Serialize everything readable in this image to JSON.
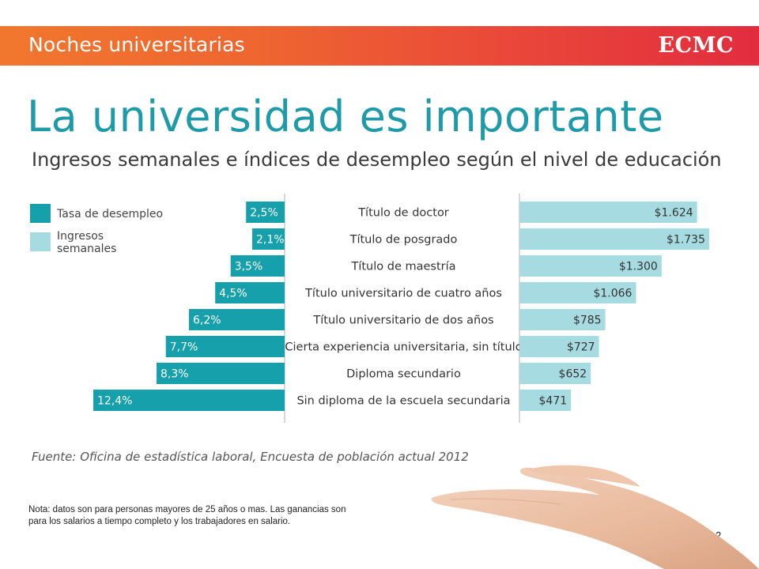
{
  "header": {
    "section_title": "Noches universitarias",
    "logo_text": "ECMC"
  },
  "title": "La universidad es importante",
  "subtitle": "Ingresos semanales e índices de desempleo según el nivel de educación",
  "source": "Fuente: Oficina de estadística laboral, Encuesta de población actual 2012",
  "note": "Nota: datos son para personas mayores de 25 años o mas. Las ganancias son para los salarios a tiempo completo y los trabajadores en salario.",
  "page_number": "2",
  "colors": {
    "banner_start": "#f1772e",
    "banner_end": "#e12d3e",
    "title": "#1e9aa8",
    "unemployment": "#16a0ac",
    "earnings": "#a7dbe2"
  },
  "chart_data": {
    "type": "bar",
    "legend": [
      {
        "label": "Tasa de desempleo",
        "color": "#16a0ac"
      },
      {
        "label": "Ingresos\nsemanales",
        "color": "#a7dbe2"
      }
    ],
    "legend_position": "top-left",
    "categories": [
      "Título de doctor",
      "Título de posgrado",
      "Título de maestría",
      "Título universitario de cuatro años",
      "Título universitario de dos años",
      "Cierta experiencia universitaria, sin título",
      "Diploma secundario",
      "Sin diploma de la escuela secundaria"
    ],
    "series": [
      {
        "name": "Tasa de desempleo",
        "values": [
          2.5,
          2.1,
          3.5,
          4.5,
          6.2,
          7.7,
          8.3,
          12.4
        ],
        "labels": [
          "2,5%",
          "2,1%",
          "3,5%",
          "4,5%",
          "6,2%",
          "7,7%",
          "8,3%",
          "12,4%"
        ]
      },
      {
        "name": "Ingresos semanales",
        "values": [
          1624,
          1735,
          1300,
          1066,
          785,
          727,
          652,
          471
        ],
        "labels": [
          "$1.624",
          "$1.735",
          "$1.300",
          "$1.066",
          "$785",
          "$727",
          "$652",
          "$471"
        ]
      }
    ],
    "xlabel": "",
    "ylabel": ""
  }
}
